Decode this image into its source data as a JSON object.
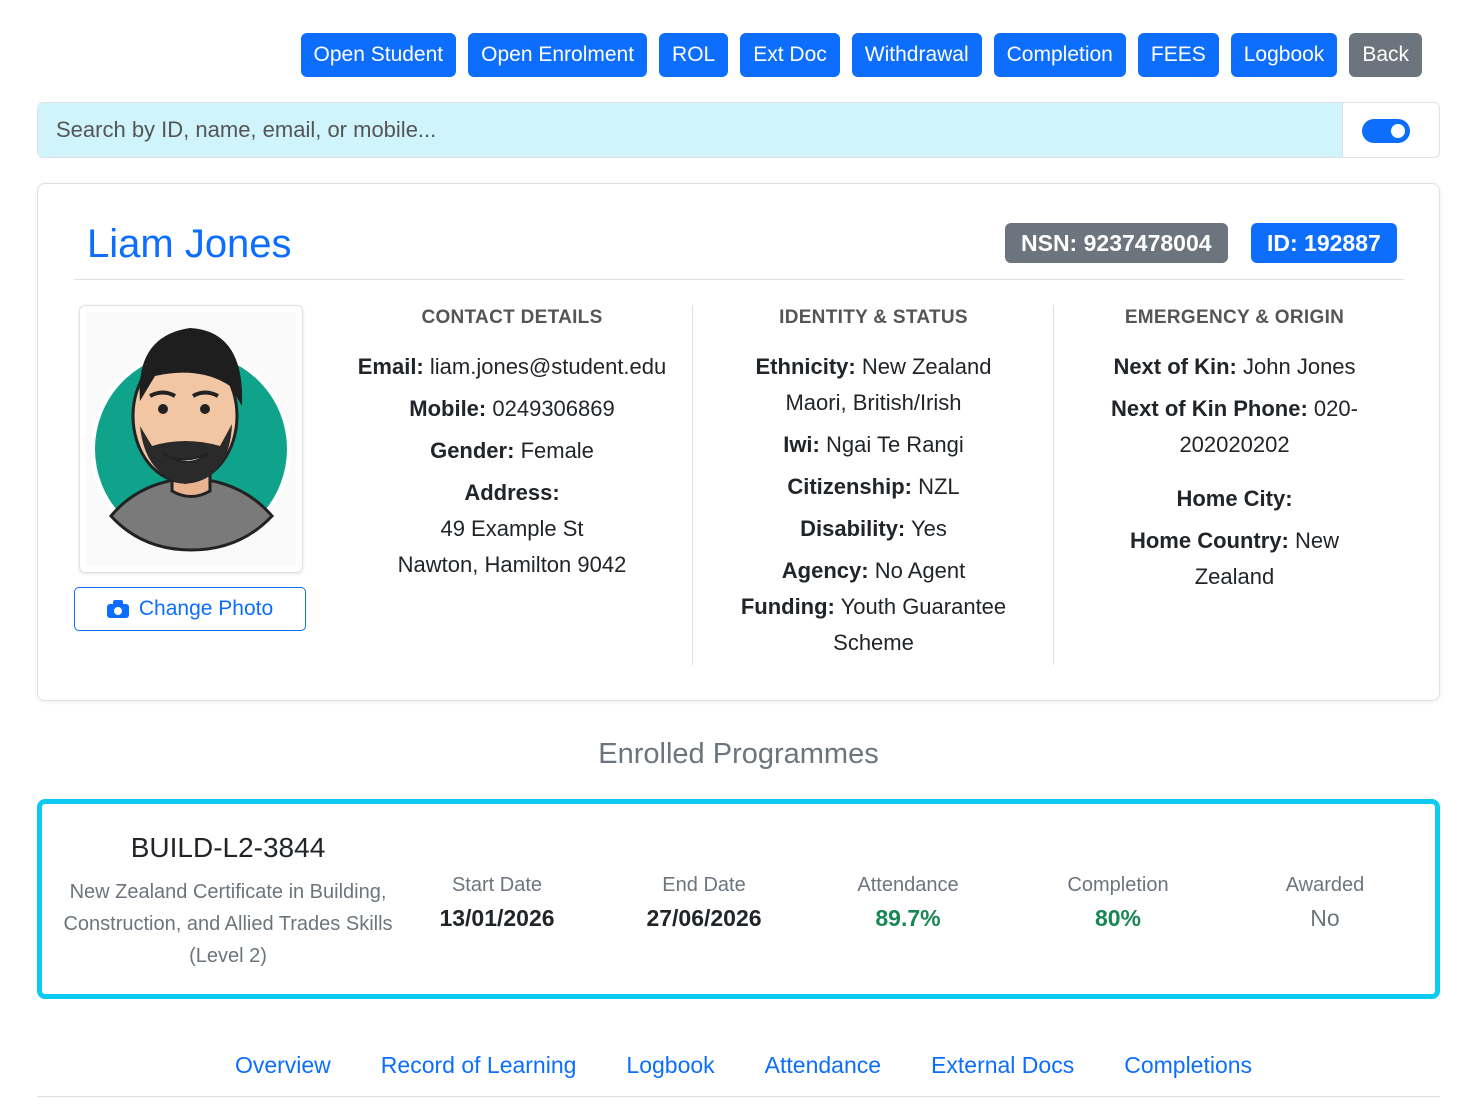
{
  "toolbar": {
    "buttons": [
      "Open Student",
      "Open Enrolment",
      "ROL",
      "Ext Doc",
      "Withdrawal",
      "Completion",
      "FEES",
      "Logbook",
      "Back"
    ]
  },
  "search": {
    "placeholder": "Search by ID, name, email, or mobile..."
  },
  "student": {
    "name": "Liam Jones",
    "nsn": "NSN: 9237478004",
    "id": "ID: 192887",
    "change_photo": "Change Photo",
    "contact": {
      "title": "CONTACT DETAILS",
      "email": {
        "label": "Email:",
        "value": "liam.jones@student.edu"
      },
      "mobile": {
        "label": "Mobile:",
        "value": "0249306869"
      },
      "gender": {
        "label": "Gender:",
        "value": "Female"
      },
      "address": {
        "label": "Address:",
        "lines": [
          "49 Example St",
          "Nawton, Hamilton 9042"
        ]
      }
    },
    "identity": {
      "title": "IDENTITY & STATUS",
      "ethnicity": {
        "label": "Ethnicity:",
        "value": "New Zealand Maori, British/Irish"
      },
      "iwi": {
        "label": "Iwi:",
        "value": "Ngai Te Rangi"
      },
      "citizenship": {
        "label": "Citizenship:",
        "value": "NZL"
      },
      "disability": {
        "label": "Disability:",
        "value": "Yes"
      },
      "agency": {
        "label": "Agency:",
        "value": "No Agent"
      },
      "funding": {
        "label": "Funding:",
        "value": "Youth Guarantee Scheme"
      }
    },
    "emergency": {
      "title": "EMERGENCY & ORIGIN",
      "next_of_kin": {
        "label": "Next of Kin:",
        "value": "John Jones"
      },
      "next_of_kin_phone": {
        "label": "Next of Kin Phone:",
        "value": "020-202020202"
      },
      "home_city": {
        "label": "Home City:"
      },
      "home_country": {
        "label": "Home Country:",
        "value": "New Zealand"
      }
    }
  },
  "programmes": {
    "title": "Enrolled Programmes",
    "items": [
      {
        "code": "BUILD-L2-3844",
        "name": "New Zealand Certificate in Building, Construction, and Allied Trades Skills (Level 2)",
        "stats": [
          {
            "label": "Start Date",
            "value": "13/01/2026"
          },
          {
            "label": "End Date",
            "value": "27/06/2026"
          },
          {
            "label": "Attendance",
            "value": "89.7%"
          },
          {
            "label": "Completion",
            "value": "80%"
          },
          {
            "label": "Awarded",
            "value": "No"
          }
        ]
      }
    ]
  },
  "tabs": [
    "Overview",
    "Record of Learning",
    "Logbook",
    "Attendance",
    "External Docs",
    "Completions"
  ]
}
